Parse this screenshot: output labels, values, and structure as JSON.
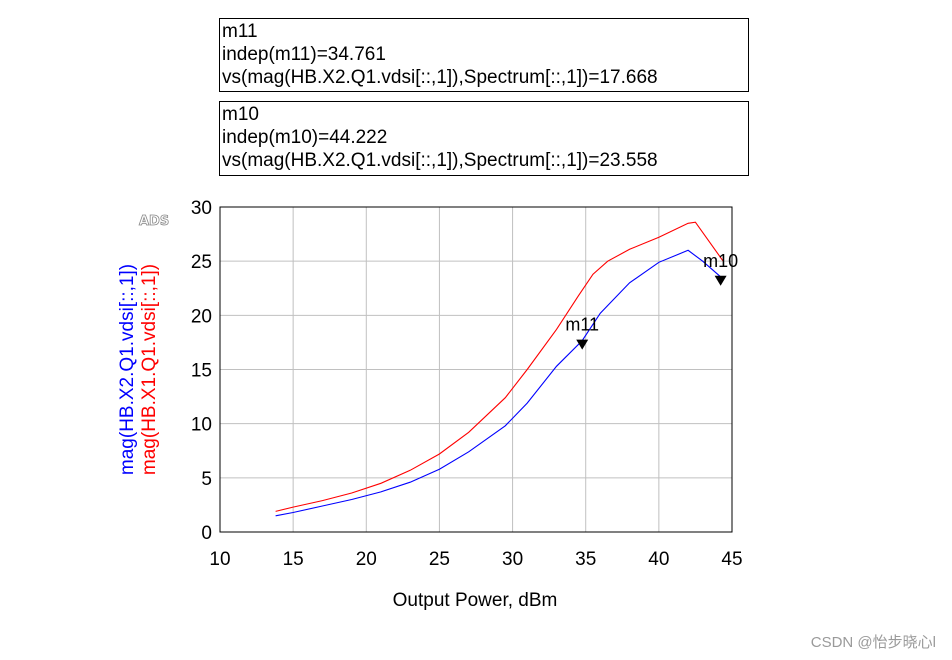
{
  "markers_text": [
    {
      "name": "m11",
      "indep_line": "indep(m11)=34.761",
      "value_line": "vs(mag(HB.X2.Q1.vdsi[::,1]),Spectrum[::,1])=17.668"
    },
    {
      "name": "m10",
      "indep_line": "indep(m10)=44.222",
      "value_line": "vs(mag(HB.X2.Q1.vdsi[::,1]),Spectrum[::,1])=23.558"
    }
  ],
  "watermark": "CSDN @怡步晓心l",
  "ads_badge": "ADS",
  "chart_data": {
    "type": "line",
    "xlabel": "Output Power, dBm",
    "ylabel_lines": [
      "mag(HB.X2.Q1.vdsi[::,1])",
      "mag(HB.X1.Q1.vdsi[::,1])"
    ],
    "xlim": [
      10,
      45
    ],
    "ylim": [
      0,
      30
    ],
    "xticks": [
      10,
      15,
      20,
      25,
      30,
      35,
      40,
      45
    ],
    "yticks": [
      0,
      5,
      10,
      15,
      20,
      25,
      30
    ],
    "grid": true,
    "series": [
      {
        "name": "mag(HB.X2.Q1.vdsi[::,1])",
        "color": "#0000ff",
        "x": [
          13.8,
          15,
          17,
          19,
          21,
          23,
          25,
          27,
          29.5,
          31,
          33,
          34.761,
          36,
          38,
          40,
          42,
          43,
          44.222
        ],
        "y": [
          1.5,
          1.8,
          2.4,
          3.0,
          3.7,
          4.6,
          5.8,
          7.4,
          9.8,
          11.9,
          15.3,
          17.668,
          20.2,
          23.0,
          24.9,
          26.0,
          25.0,
          23.558
        ]
      },
      {
        "name": "mag(HB.X1.Q1.vdsi[::,1])",
        "color": "#ff0000",
        "x": [
          13.8,
          15,
          17,
          19,
          21,
          23,
          25,
          27,
          29.5,
          31,
          33,
          34.5,
          35.5,
          36.5,
          38,
          40,
          42,
          42.5,
          44.4
        ],
        "y": [
          1.9,
          2.3,
          2.9,
          3.6,
          4.5,
          5.7,
          7.2,
          9.2,
          12.4,
          15.0,
          18.7,
          21.8,
          23.8,
          25.0,
          26.1,
          27.2,
          28.5,
          28.6,
          25.0
        ]
      }
    ],
    "markers": [
      {
        "name": "m11",
        "x": 34.761,
        "y": 17.668
      },
      {
        "name": "m10",
        "x": 44.222,
        "y": 23.558
      }
    ]
  }
}
